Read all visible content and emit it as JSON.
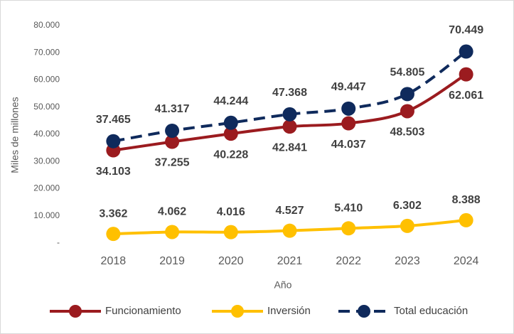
{
  "chart_data": {
    "type": "line",
    "y_label": "Miles de millones",
    "x_label": "Año",
    "categories": [
      "2018",
      "2019",
      "2020",
      "2021",
      "2022",
      "2023",
      "2024"
    ],
    "series": [
      {
        "name": "Funcionamiento",
        "color": "#9b1b1f",
        "values": [
          34103,
          37255,
          40228,
          42841,
          44037,
          48503,
          62061
        ],
        "value_labels": [
          "34.103",
          "37.255",
          "40.228",
          "42.841",
          "44.037",
          "48.503",
          "62.061"
        ]
      },
      {
        "name": "Inversión",
        "color": "#ffc000",
        "values": [
          3362,
          4062,
          4016,
          4527,
          5410,
          6302,
          8388
        ],
        "value_labels": [
          "3.362",
          "4.062",
          "4.016",
          "4.527",
          "5.410",
          "6.302",
          "8.388"
        ]
      },
      {
        "name": "Total educación",
        "color": "#0f2a5c",
        "dashed": true,
        "values": [
          37465,
          41317,
          44244,
          47368,
          49447,
          54805,
          70449
        ],
        "value_labels": [
          "37.465",
          "41.317",
          "44.244",
          "47.368",
          "49.447",
          "54.805",
          "70.449"
        ]
      }
    ],
    "ylim": [
      0,
      80000
    ],
    "yticks": [
      {
        "value": 0,
        "label": "-"
      },
      {
        "value": 10000,
        "label": "10.000"
      },
      {
        "value": 20000,
        "label": "20.000"
      },
      {
        "value": 30000,
        "label": "30.000"
      },
      {
        "value": 40000,
        "label": "40.000"
      },
      {
        "value": 50000,
        "label": "50.000"
      },
      {
        "value": 60000,
        "label": "60.000"
      },
      {
        "value": 70000,
        "label": "70.000"
      },
      {
        "value": 80000,
        "label": "80.000"
      }
    ],
    "grid": false,
    "legend": "bottom"
  }
}
